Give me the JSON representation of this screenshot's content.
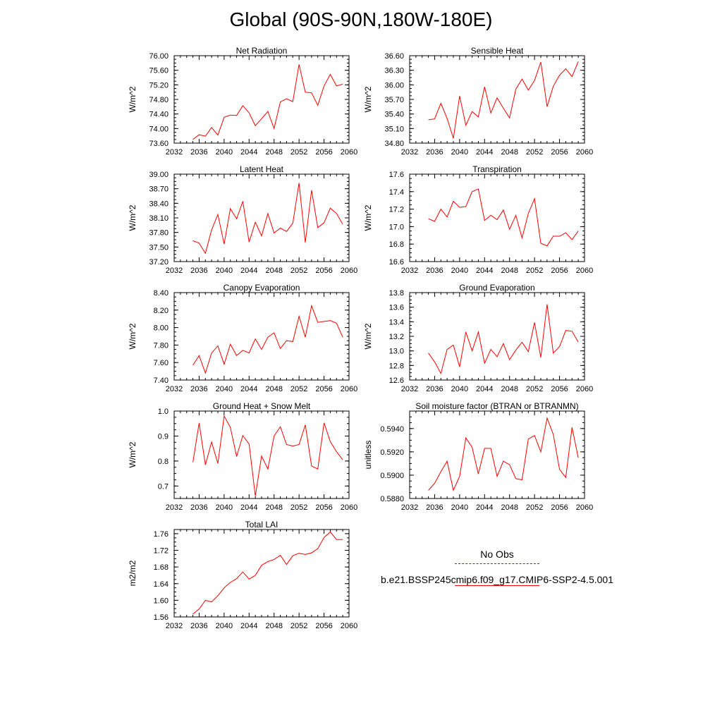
{
  "title": "Global (90S-90N,180W-180E)",
  "colors": {
    "model_line": "#ff0000",
    "obs_line": "#3333aa",
    "axis": "#000000"
  },
  "legend": {
    "obs_label": "No Obs",
    "model_label": "b.e21.BSSP245cmip6.f09_g17.CMIP6-SSP2-4.5.001"
  },
  "chart_data": [
    {
      "type": "line",
      "title": "Net Radiation",
      "ylabel": "W/m^2",
      "xlim": [
        2032,
        2060
      ],
      "xticks": [
        2032,
        2036,
        2040,
        2044,
        2048,
        2052,
        2056,
        2060
      ],
      "ylim": [
        73.6,
        76.0
      ],
      "yticks": [
        73.6,
        74.0,
        74.4,
        74.8,
        75.2,
        75.6,
        76.0
      ],
      "ytick_labels": [
        "73.60",
        "74.00",
        "74.40",
        "74.80",
        "75.20",
        "75.60",
        "76.00"
      ],
      "x": [
        2035,
        2036,
        2037,
        2038,
        2039,
        2040,
        2041,
        2042,
        2043,
        2044,
        2045,
        2046,
        2047,
        2048,
        2049,
        2050,
        2051,
        2052,
        2053,
        2054,
        2055,
        2056,
        2057,
        2058,
        2059
      ],
      "y": [
        73.7,
        73.83,
        73.79,
        74.03,
        73.82,
        74.31,
        74.37,
        74.36,
        74.63,
        74.43,
        74.08,
        74.27,
        74.47,
        74.0,
        74.73,
        74.82,
        74.74,
        75.76,
        75.0,
        74.98,
        74.64,
        75.17,
        75.49,
        75.17,
        75.22
      ]
    },
    {
      "type": "line",
      "title": "Sensible Heat",
      "ylabel": "W/m^2",
      "xlim": [
        2032,
        2060
      ],
      "xticks": [
        2032,
        2036,
        2040,
        2044,
        2048,
        2052,
        2056,
        2060
      ],
      "ylim": [
        34.8,
        36.6
      ],
      "yticks": [
        34.8,
        35.1,
        35.4,
        35.7,
        36.0,
        36.3,
        36.6
      ],
      "ytick_labels": [
        "34.80",
        "35.10",
        "35.40",
        "35.70",
        "36.00",
        "36.30",
        "36.60"
      ],
      "x": [
        2035,
        2036,
        2037,
        2038,
        2039,
        2040,
        2041,
        2042,
        2043,
        2044,
        2045,
        2046,
        2047,
        2048,
        2049,
        2050,
        2051,
        2052,
        2053,
        2054,
        2055,
        2056,
        2057,
        2058,
        2059
      ],
      "y": [
        35.28,
        35.3,
        35.62,
        35.31,
        34.9,
        35.77,
        35.17,
        35.45,
        35.34,
        35.96,
        35.42,
        35.73,
        35.52,
        35.32,
        35.91,
        36.12,
        35.89,
        36.09,
        36.47,
        35.55,
        35.97,
        36.2,
        36.33,
        36.17,
        36.48
      ]
    },
    {
      "type": "line",
      "title": "Latent Heat",
      "ylabel": "W/m^2",
      "xlim": [
        2032,
        2060
      ],
      "xticks": [
        2032,
        2036,
        2040,
        2044,
        2048,
        2052,
        2056,
        2060
      ],
      "ylim": [
        37.2,
        39.0
      ],
      "yticks": [
        37.2,
        37.5,
        37.8,
        38.1,
        38.4,
        38.7,
        39.0
      ],
      "ytick_labels": [
        "37.20",
        "37.50",
        "37.80",
        "38.10",
        "38.40",
        "38.70",
        "39.00"
      ],
      "x": [
        2035,
        2036,
        2037,
        2038,
        2039,
        2040,
        2041,
        2042,
        2043,
        2044,
        2045,
        2046,
        2047,
        2048,
        2049,
        2050,
        2051,
        2052,
        2053,
        2054,
        2055,
        2056,
        2057,
        2058,
        2059
      ],
      "y": [
        37.63,
        37.58,
        37.37,
        37.85,
        38.17,
        37.56,
        38.29,
        38.08,
        38.44,
        37.6,
        38.01,
        37.73,
        38.19,
        37.79,
        37.89,
        37.82,
        37.99,
        38.82,
        37.59,
        38.67,
        37.9,
        38.0,
        38.3,
        38.19,
        37.97
      ]
    },
    {
      "type": "line",
      "title": "Transpiration",
      "ylabel": "W/m^2",
      "xlim": [
        2032,
        2060
      ],
      "xticks": [
        2032,
        2036,
        2040,
        2044,
        2048,
        2052,
        2056,
        2060
      ],
      "ylim": [
        16.6,
        17.6
      ],
      "yticks": [
        16.6,
        16.8,
        17.0,
        17.2,
        17.4,
        17.6
      ],
      "ytick_labels": [
        "16.6",
        "16.8",
        "17.0",
        "17.2",
        "17.4",
        "17.6"
      ],
      "x": [
        2035,
        2036,
        2037,
        2038,
        2039,
        2040,
        2041,
        2042,
        2043,
        2044,
        2045,
        2046,
        2047,
        2048,
        2049,
        2050,
        2051,
        2052,
        2053,
        2054,
        2055,
        2056,
        2057,
        2058,
        2059
      ],
      "y": [
        17.09,
        17.06,
        17.2,
        17.11,
        17.29,
        17.22,
        17.23,
        17.4,
        17.43,
        17.07,
        17.13,
        17.08,
        17.19,
        16.97,
        17.13,
        16.87,
        17.15,
        17.32,
        16.81,
        16.78,
        16.89,
        16.89,
        16.93,
        16.85,
        16.95
      ]
    },
    {
      "type": "line",
      "title": "Canopy Evaporation",
      "ylabel": "W/m^2",
      "xlim": [
        2032,
        2060
      ],
      "xticks": [
        2032,
        2036,
        2040,
        2044,
        2048,
        2052,
        2056,
        2060
      ],
      "ylim": [
        7.4,
        8.4
      ],
      "yticks": [
        7.4,
        7.6,
        7.8,
        8.0,
        8.2,
        8.4
      ],
      "ytick_labels": [
        "7.40",
        "7.60",
        "7.80",
        "8.00",
        "8.20",
        "8.40"
      ],
      "x": [
        2035,
        2036,
        2037,
        2038,
        2039,
        2040,
        2041,
        2042,
        2043,
        2044,
        2045,
        2046,
        2047,
        2048,
        2049,
        2050,
        2051,
        2052,
        2053,
        2054,
        2055,
        2056,
        2057,
        2058,
        2059
      ],
      "y": [
        7.57,
        7.68,
        7.48,
        7.71,
        7.79,
        7.58,
        7.81,
        7.68,
        7.74,
        7.71,
        7.87,
        7.75,
        7.89,
        7.94,
        7.76,
        7.85,
        7.84,
        8.13,
        7.89,
        8.25,
        8.06,
        8.07,
        8.08,
        8.05,
        7.89
      ]
    },
    {
      "type": "line",
      "title": "Ground Evaporation",
      "ylabel": "W/m^2",
      "xlim": [
        2032,
        2060
      ],
      "xticks": [
        2032,
        2036,
        2040,
        2044,
        2048,
        2052,
        2056,
        2060
      ],
      "ylim": [
        12.6,
        13.8
      ],
      "yticks": [
        12.6,
        12.8,
        13.0,
        13.2,
        13.4,
        13.6,
        13.8
      ],
      "ytick_labels": [
        "12.6",
        "12.8",
        "13.0",
        "13.2",
        "13.4",
        "13.6",
        "13.8"
      ],
      "x": [
        2035,
        2036,
        2037,
        2038,
        2039,
        2040,
        2041,
        2042,
        2043,
        2044,
        2045,
        2046,
        2047,
        2048,
        2049,
        2050,
        2051,
        2052,
        2053,
        2054,
        2055,
        2056,
        2057,
        2058,
        2059
      ],
      "y": [
        12.97,
        12.85,
        12.69,
        13.02,
        13.08,
        12.78,
        13.26,
        13.0,
        13.26,
        12.83,
        13.02,
        12.92,
        13.1,
        12.88,
        13.01,
        13.12,
        12.99,
        13.39,
        12.91,
        13.64,
        12.97,
        13.06,
        13.28,
        13.27,
        13.12
      ]
    },
    {
      "type": "line",
      "title": "Ground Heat + Snow Melt",
      "ylabel": "W/m^2",
      "xlim": [
        2032,
        2060
      ],
      "xticks": [
        2032,
        2036,
        2040,
        2044,
        2048,
        2052,
        2056,
        2060
      ],
      "ylim": [
        0.65,
        1.0
      ],
      "yticks": [
        0.7,
        0.8,
        0.9,
        1.0
      ],
      "ytick_labels": [
        "0.7",
        "0.8",
        "0.9",
        "1.0"
      ],
      "x": [
        2035,
        2036,
        2037,
        2038,
        2039,
        2040,
        2041,
        2042,
        2043,
        2044,
        2045,
        2046,
        2047,
        2048,
        2049,
        2050,
        2051,
        2052,
        2053,
        2054,
        2055,
        2056,
        2057,
        2058,
        2059
      ],
      "y": [
        0.795,
        0.952,
        0.785,
        0.876,
        0.79,
        0.98,
        0.935,
        0.818,
        0.902,
        0.868,
        0.66,
        0.82,
        0.768,
        0.9,
        0.937,
        0.866,
        0.86,
        0.866,
        0.945,
        0.78,
        0.768,
        0.953,
        0.878,
        0.837,
        0.805
      ]
    },
    {
      "type": "line",
      "title": "Soil moisture factor (BTRAN or BTRANMN)",
      "ylabel": "unitless",
      "xlim": [
        2032,
        2060
      ],
      "xticks": [
        2032,
        2036,
        2040,
        2044,
        2048,
        2052,
        2056,
        2060
      ],
      "ylim": [
        0.588,
        0.5955
      ],
      "yticks": [
        0.588,
        0.59,
        0.592,
        0.594
      ],
      "ytick_labels": [
        "0.5880",
        "0.5900",
        "0.5920",
        "0.5940"
      ],
      "x": [
        2035,
        2036,
        2037,
        2038,
        2039,
        2040,
        2041,
        2042,
        2043,
        2044,
        2045,
        2046,
        2047,
        2048,
        2049,
        2050,
        2051,
        2052,
        2053,
        2054,
        2055,
        2056,
        2057,
        2058,
        2059
      ],
      "y": [
        0.5887,
        0.5893,
        0.5903,
        0.5912,
        0.5887,
        0.5899,
        0.5932,
        0.5924,
        0.5901,
        0.5923,
        0.5923,
        0.5899,
        0.5912,
        0.5909,
        0.5897,
        0.5896,
        0.5931,
        0.5934,
        0.592,
        0.5949,
        0.5935,
        0.5905,
        0.5898,
        0.5941,
        0.5915
      ]
    },
    {
      "type": "line",
      "title": "Total LAI",
      "ylabel": "m2/m2",
      "xlim": [
        2032,
        2060
      ],
      "xticks": [
        2032,
        2036,
        2040,
        2044,
        2048,
        2052,
        2056,
        2060
      ],
      "ylim": [
        1.56,
        1.77
      ],
      "yticks": [
        1.56,
        1.6,
        1.64,
        1.68,
        1.72,
        1.76
      ],
      "ytick_labels": [
        "1.56",
        "1.60",
        "1.64",
        "1.68",
        "1.72",
        "1.76"
      ],
      "x": [
        2035,
        2036,
        2037,
        2038,
        2039,
        2040,
        2041,
        2042,
        2043,
        2044,
        2045,
        2046,
        2047,
        2048,
        2049,
        2050,
        2051,
        2052,
        2053,
        2054,
        2055,
        2056,
        2057,
        2058,
        2059
      ],
      "y": [
        1.567,
        1.579,
        1.6,
        1.596,
        1.611,
        1.63,
        1.643,
        1.652,
        1.668,
        1.651,
        1.66,
        1.684,
        1.693,
        1.698,
        1.708,
        1.686,
        1.707,
        1.713,
        1.71,
        1.714,
        1.724,
        1.751,
        1.764,
        1.746,
        1.746
      ]
    }
  ]
}
